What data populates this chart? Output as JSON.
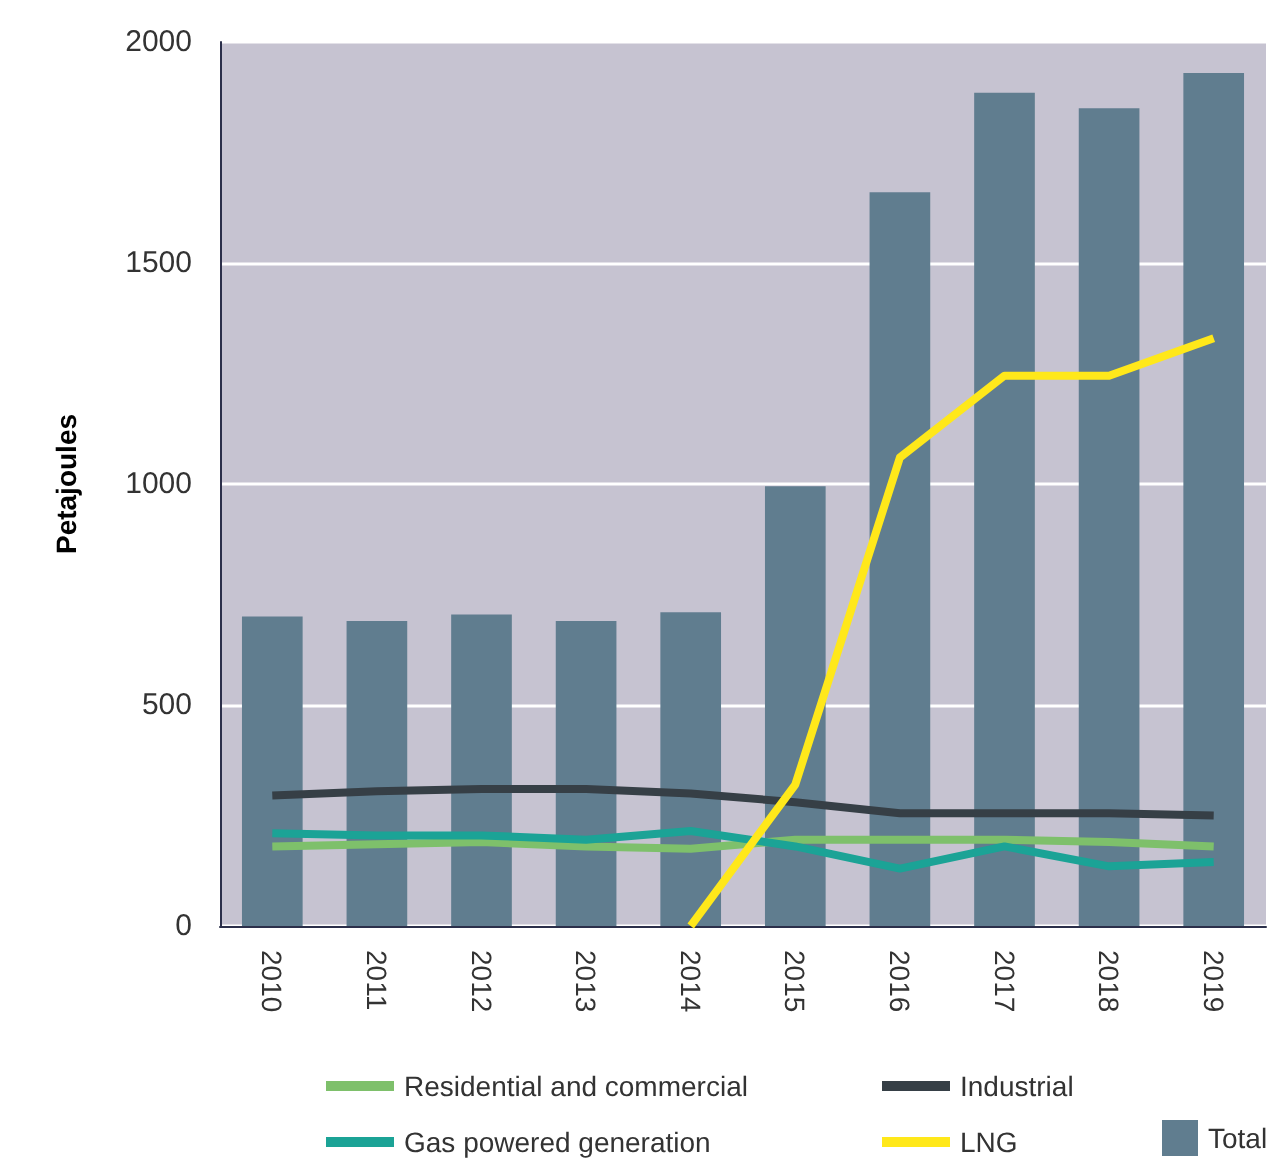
{
  "chart_data": {
    "type": "bar",
    "ylabel": "Petajoules",
    "categories": [
      "2010",
      "2011",
      "2012",
      "2013",
      "2014",
      "2015",
      "2016",
      "2017",
      "2018",
      "2019"
    ],
    "series": [
      {
        "name": "Total",
        "color": "#607d8f",
        "values": [
          700,
          690,
          705,
          690,
          710,
          995,
          1660,
          1885,
          1850,
          1930
        ]
      },
      {
        "name": "Residential and commercial",
        "type": "line",
        "color": "#7ec06b",
        "values": [
          180,
          185,
          190,
          180,
          175,
          195,
          195,
          195,
          190,
          180
        ]
      },
      {
        "name": "Industrial",
        "type": "line",
        "color": "#363f46",
        "values": [
          295,
          305,
          310,
          310,
          300,
          280,
          255,
          255,
          255,
          250
        ]
      },
      {
        "name": "Gas powered generation",
        "type": "line",
        "color": "#1ba396",
        "values": [
          210,
          205,
          205,
          195,
          215,
          180,
          130,
          180,
          135,
          145
        ]
      },
      {
        "name": "LNG",
        "type": "line",
        "color": "#ffe81a",
        "values": [
          null,
          null,
          null,
          null,
          0,
          320,
          1060,
          1245,
          1245,
          1330
        ]
      }
    ],
    "ylim": [
      0,
      2000
    ],
    "yticks": [
      0,
      500,
      1000,
      1500,
      2000
    ],
    "grid": "y",
    "legend": "bottom",
    "marker": "none",
    "line_style": "solid"
  }
}
